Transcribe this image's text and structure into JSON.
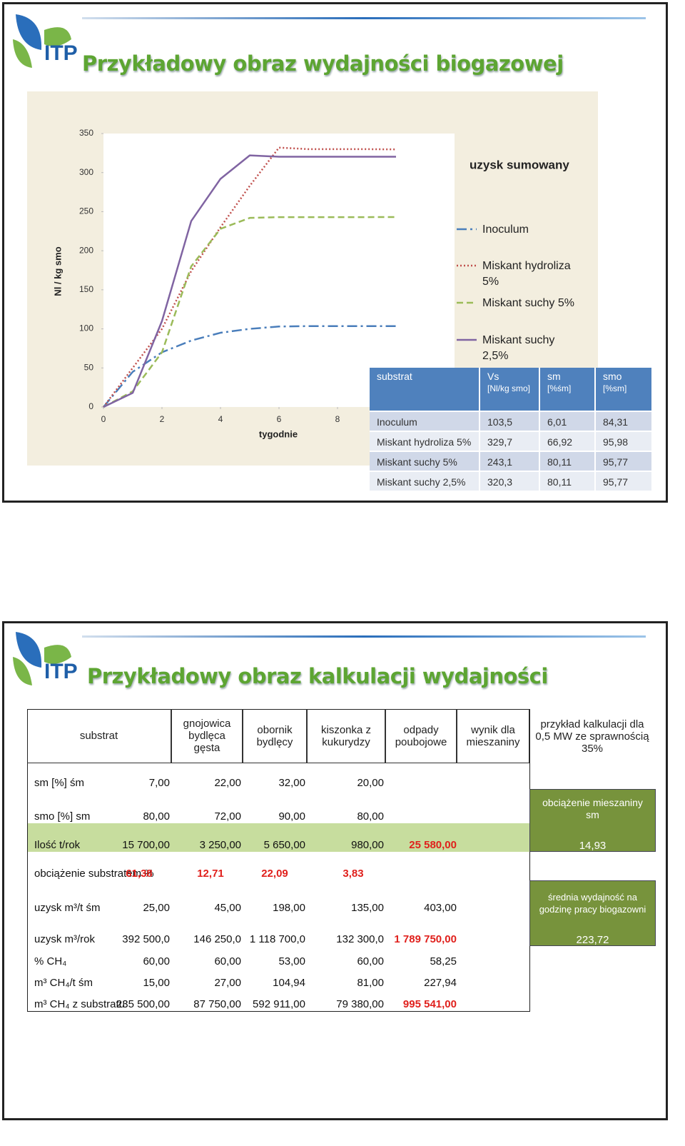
{
  "slide1": {
    "logo": "ITP",
    "title": "Przykładowy  obraz  wydajności biogazowej"
  },
  "chart_data": {
    "type": "line",
    "title": "uzysk sumowany",
    "y_label": "Nl / kg smo",
    "x_label": "tygodnie",
    "x": [
      0,
      1,
      2,
      3,
      4,
      5,
      6,
      7,
      8,
      9,
      10
    ],
    "xlim": [
      0,
      12
    ],
    "xticks": [
      0,
      2,
      4,
      6,
      8
    ],
    "ylim": [
      0,
      350
    ],
    "yticks": [
      0,
      50,
      100,
      150,
      200,
      250,
      300,
      350
    ],
    "grid": false,
    "legend": "right",
    "series": [
      {
        "name": "Inoculum",
        "color": "#4a7ebb",
        "dash": "14 5 3 5",
        "values": [
          0,
          45,
          70,
          85,
          95,
          100,
          103,
          103.5,
          103.5,
          103.5,
          103.5
        ]
      },
      {
        "name": "Miskant hydroliza 5%",
        "color": "#c0504d",
        "dash": "2 3",
        "values": [
          0,
          50,
          100,
          174,
          230,
          283,
          332,
          330,
          330,
          330,
          329.7
        ]
      },
      {
        "name": "Miskant suchy 5%",
        "color": "#9bbb59",
        "dash": "9 5",
        "values": [
          0,
          20,
          70,
          180,
          228,
          242,
          243,
          243,
          243,
          243,
          243.1
        ]
      },
      {
        "name": "Miskant suchy 2,5%",
        "color": "#8064a2",
        "dash": "none",
        "values": [
          0,
          18,
          110,
          238,
          292,
          322,
          320.3,
          320.3,
          320.3,
          320.3,
          320.3
        ]
      }
    ]
  },
  "table1": {
    "header": [
      {
        "text": "substrat"
      },
      {
        "text": "Vs",
        "unit": "[Nl/kg smo]"
      },
      {
        "text": "sm",
        "unit": "[%śm]"
      },
      {
        "text": "smo",
        "unit": "[%sm]"
      }
    ],
    "rows": [
      [
        "Inoculum",
        "103,5",
        "6,01",
        "84,31"
      ],
      [
        "Miskant hydroliza 5%",
        "329,7",
        "66,92",
        "95,98"
      ],
      [
        "Miskant suchy 5%",
        "243,1",
        "80,11",
        "95,77"
      ],
      [
        "Miskant suchy 2,5%",
        "320,3",
        "80,11",
        "95,77"
      ]
    ]
  },
  "slide2": {
    "logo": "ITP",
    "title": "Przykładowy  obraz  kalkulacji wydajności"
  },
  "table2": {
    "header": [
      "substrat",
      "gnojowica bydlęca gęsta",
      "obornik bydlęcy",
      "kiszonka z kukurydzy",
      "odpady poubojowe",
      "wynik dla mieszaniny",
      "przykład kalkulacji dla 0,5 MW ze sprawnością 35%"
    ],
    "rows": [
      {
        "label": "sm [%] śm",
        "cells": [
          "7,00",
          "22,00",
          "32,00",
          "20,00",
          null
        ]
      },
      {
        "label": "smo [%] sm",
        "cells": [
          "80,00",
          "72,00",
          "90,00",
          "80,00",
          null
        ]
      },
      {
        "label": "Ilość t/rok",
        "cells": [
          "15 700,00",
          "3 250,00",
          "5 650,00",
          "980,00",
          "25 580,00"
        ]
      },
      {
        "label": "obciążenie substratem %",
        "cells": [
          "61,38",
          "12,71",
          "22,09",
          "3,83",
          null
        ]
      },
      {
        "label": "uzysk m³/t śm",
        "cells": [
          "25,00",
          "45,00",
          "198,00",
          "135,00",
          "403,00"
        ]
      },
      {
        "label": "uzysk m³/rok",
        "cells": [
          "392 500,0",
          "146 250,0",
          "1 118 700,0",
          "132 300,0",
          "1 789 750,00"
        ]
      },
      {
        "label": "% CH₄",
        "cells": [
          "60,00",
          "60,00",
          "53,00",
          "60,00",
          "58,25"
        ]
      },
      {
        "label": "m³ CH₄/t śm",
        "cells": [
          "15,00",
          "27,00",
          "104,94",
          "81,00",
          "227,94"
        ]
      },
      {
        "label": "m³ CH₄ z substratu",
        "cells": [
          "235 500,00",
          "87 750,00",
          "592 911,00",
          "79 380,00",
          "995 541,00"
        ]
      }
    ],
    "boxes": [
      {
        "label": "obciążenie mieszaniny sm",
        "value": "14,93"
      },
      {
        "label": "średnia wydajność na godzinę pracy biogazowni",
        "value": "223,72"
      }
    ]
  }
}
